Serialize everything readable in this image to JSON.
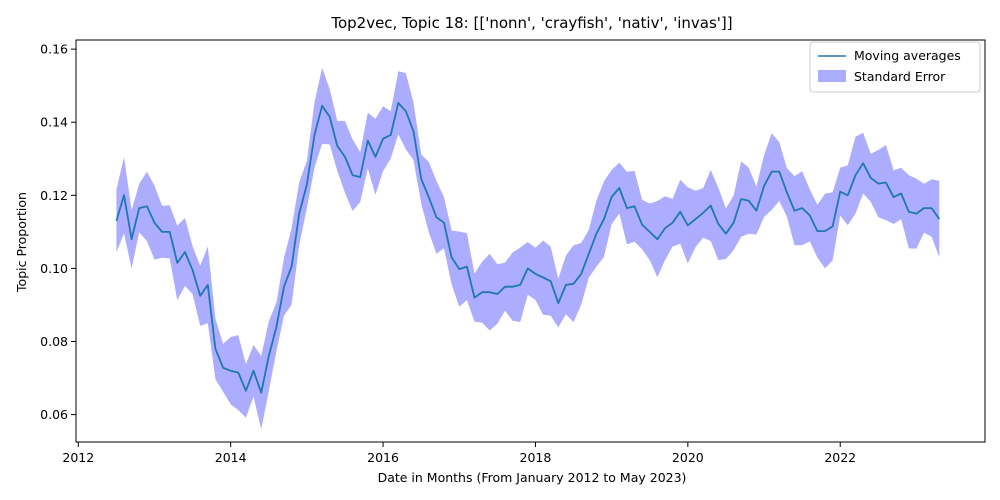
{
  "chart_data": {
    "type": "line",
    "title": "Top2vec, Topic 18: [['nonn', 'crayfish', 'nativ', 'invas']]",
    "xlabel": "Date in Months (From January 2012 to May 2023)",
    "ylabel": "Topic Proportion",
    "xlim": [
      2011.97,
      2023.9
    ],
    "ylim": [
      0.0525,
      0.1625
    ],
    "xticks": [
      2012,
      2014,
      2016,
      2018,
      2020,
      2022
    ],
    "yticks": [
      0.06,
      0.08,
      0.1,
      0.12,
      0.14,
      0.16
    ],
    "ytick_labels": [
      "0.06",
      "0.08",
      "0.10",
      "0.12",
      "0.14",
      "0.16"
    ],
    "legend": {
      "position": "top-right",
      "items": [
        "Moving averages",
        "Standard Error"
      ]
    },
    "colors": {
      "line": "#1f77b4",
      "band": "#0000ff",
      "band_opacity": 0.32
    },
    "series": [
      {
        "name": "Moving averages",
        "x": [
          2012.5,
          2012.6,
          2012.7,
          2012.8,
          2012.9,
          2013.0,
          2013.1,
          2013.2,
          2013.3,
          2013.4,
          2013.5,
          2013.6,
          2013.7,
          2013.8,
          2013.9,
          2014.0,
          2014.1,
          2014.2,
          2014.3,
          2014.4,
          2014.5,
          2014.6,
          2014.7,
          2014.8,
          2014.9,
          2015.0,
          2015.1,
          2015.2,
          2015.3,
          2015.4,
          2015.5,
          2015.6,
          2015.7,
          2015.8,
          2015.9,
          2016.0,
          2016.1,
          2016.2,
          2016.3,
          2016.4,
          2016.5,
          2016.6,
          2016.7,
          2016.8,
          2016.9,
          2017.0,
          2017.1,
          2017.2,
          2017.3,
          2017.4,
          2017.5,
          2017.6,
          2017.7,
          2017.8,
          2017.9,
          2018.0,
          2018.1,
          2018.2,
          2018.3,
          2018.4,
          2018.5,
          2018.6,
          2018.7,
          2018.8,
          2018.9,
          2019.0,
          2019.1,
          2019.2,
          2019.3,
          2019.4,
          2019.5,
          2019.6,
          2019.7,
          2019.8,
          2019.9,
          2020.0,
          2020.1,
          2020.2,
          2020.3,
          2020.4,
          2020.5,
          2020.6,
          2020.7,
          2020.8,
          2020.9,
          2021.0,
          2021.1,
          2021.2,
          2021.3,
          2021.4,
          2021.5,
          2021.6,
          2021.7,
          2021.8,
          2021.9,
          2022.0,
          2022.1,
          2022.2,
          2022.3,
          2022.4,
          2022.5,
          2022.6,
          2022.7,
          2022.8,
          2022.9,
          2023.0,
          2023.1,
          2023.2,
          2023.3
        ],
        "y": [
          0.113,
          0.12,
          0.108,
          0.1165,
          0.117,
          0.1125,
          0.11,
          0.11,
          0.1015,
          0.1045,
          0.0995,
          0.0925,
          0.0955,
          0.078,
          0.0728,
          0.072,
          0.0715,
          0.0665,
          0.072,
          0.066,
          0.076,
          0.084,
          0.095,
          0.1005,
          0.115,
          0.123,
          0.1365,
          0.1445,
          0.1415,
          0.1335,
          0.1305,
          0.1255,
          0.125,
          0.135,
          0.1305,
          0.1355,
          0.1365,
          0.1453,
          0.143,
          0.1375,
          0.1245,
          0.1195,
          0.114,
          0.1125,
          0.103,
          0.0998,
          0.1005,
          0.092,
          0.0935,
          0.0935,
          0.093,
          0.095,
          0.095,
          0.0955,
          0.1,
          0.0985,
          0.0975,
          0.0965,
          0.0905,
          0.0955,
          0.0958,
          0.0985,
          0.104,
          0.1095,
          0.1135,
          0.1195,
          0.122,
          0.1165,
          0.117,
          0.112,
          0.11,
          0.108,
          0.111,
          0.1125,
          0.1155,
          0.1118,
          0.1135,
          0.1152,
          0.1172,
          0.1122,
          0.1095,
          0.1125,
          0.119,
          0.1185,
          0.1158,
          0.1225,
          0.1265,
          0.1265,
          0.1208,
          0.1158,
          0.1165,
          0.1145,
          0.1102,
          0.1102,
          0.1115,
          0.121,
          0.12,
          0.1255,
          0.1288,
          0.1248,
          0.1232,
          0.1235,
          0.1195,
          0.1205,
          0.1155,
          0.115,
          0.1165,
          0.1165,
          0.1135
        ]
      }
    ]
  }
}
